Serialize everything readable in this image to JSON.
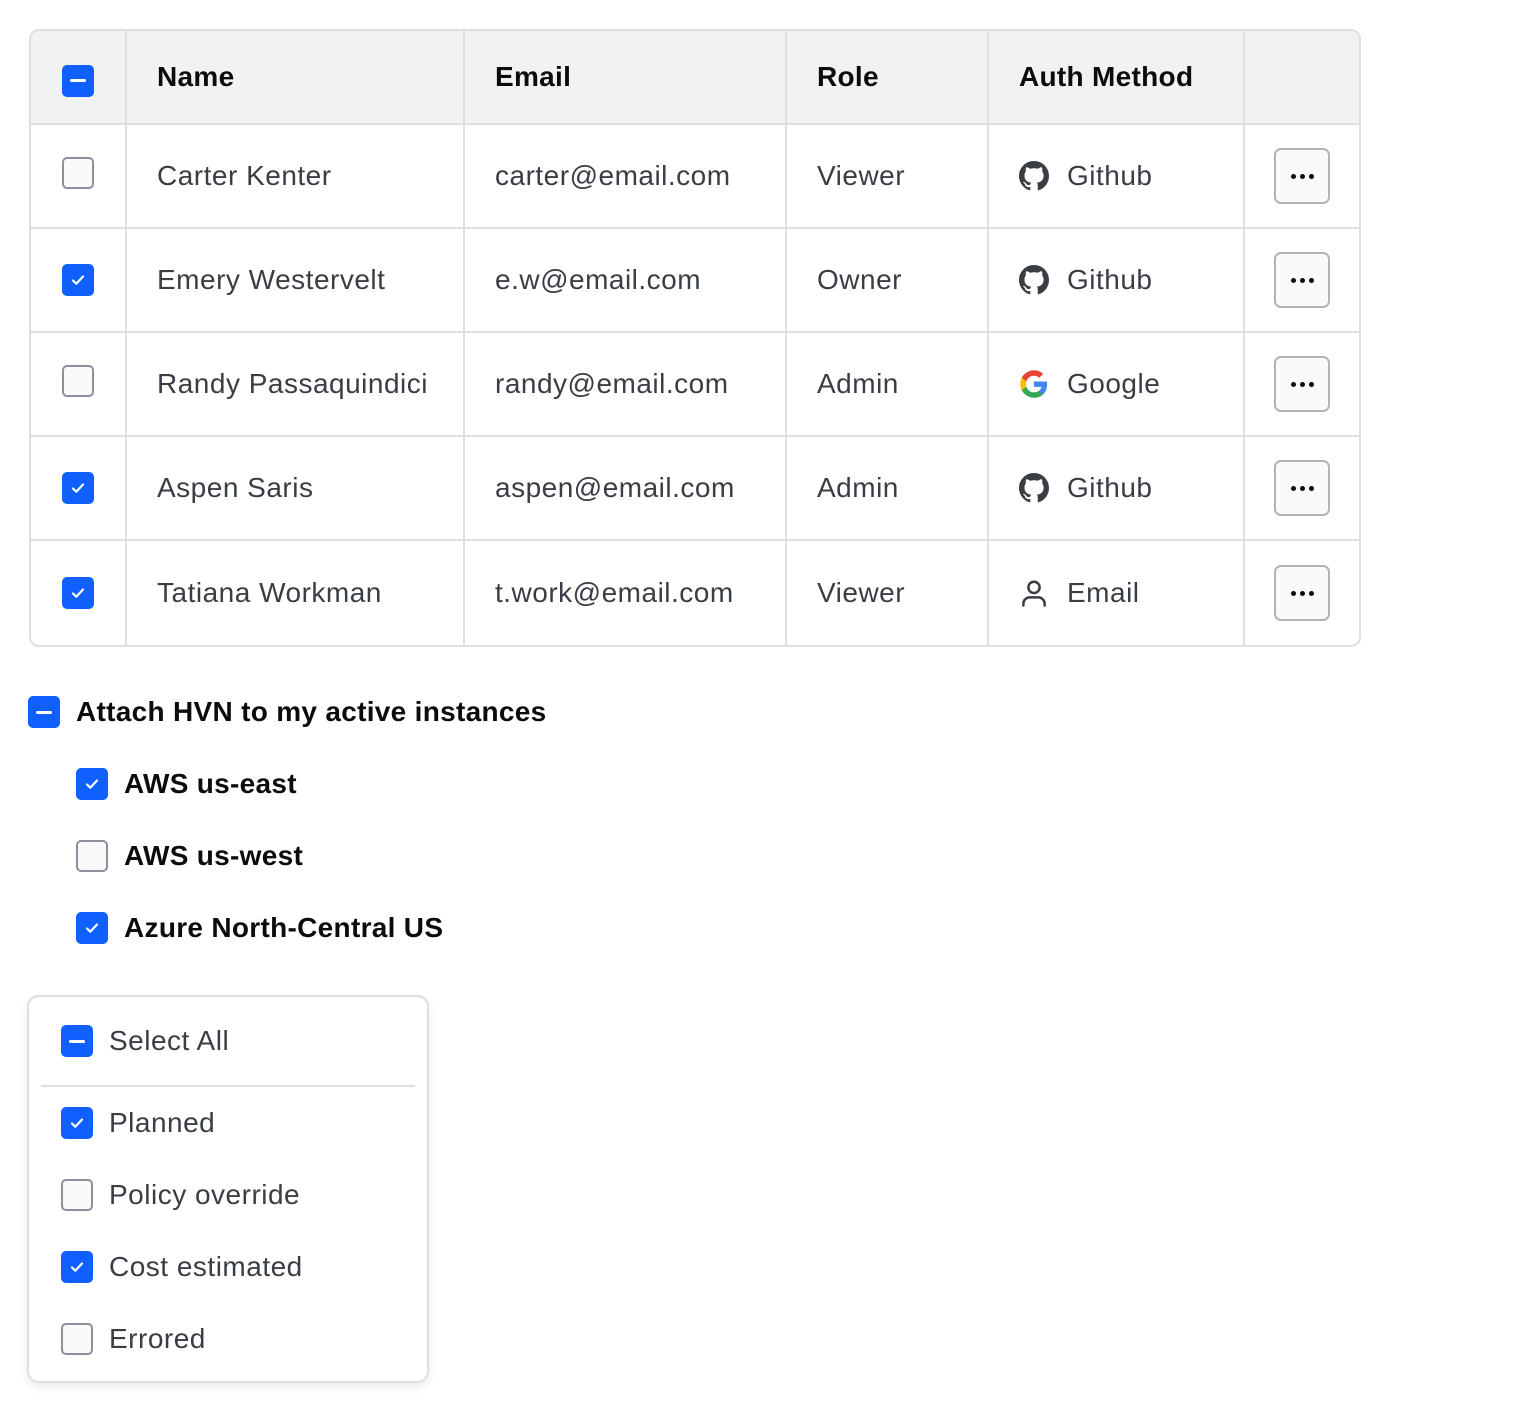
{
  "table": {
    "header_checkbox": "indeterminate",
    "columns": [
      "Name",
      "Email",
      "Role",
      "Auth Method",
      ""
    ],
    "rows": [
      {
        "checked": false,
        "name": "Carter Kenter",
        "email": "carter@email.com",
        "role": "Viewer",
        "auth": "Github",
        "auth_icon": "github-icon"
      },
      {
        "checked": true,
        "name": "Emery Westervelt",
        "email": "e.w@email.com",
        "role": "Owner",
        "auth": "Github",
        "auth_icon": "github-icon"
      },
      {
        "checked": false,
        "name": "Randy Passaquindici",
        "email": "randy@email.com",
        "role": "Admin",
        "auth": "Google",
        "auth_icon": "google-icon"
      },
      {
        "checked": true,
        "name": "Aspen Saris",
        "email": "aspen@email.com",
        "role": "Admin",
        "auth": "Github",
        "auth_icon": "github-icon"
      },
      {
        "checked": true,
        "name": "Tatiana Workman",
        "email": "t.work@email.com",
        "role": "Viewer",
        "auth": "Email",
        "auth_icon": "user-icon"
      }
    ]
  },
  "group": {
    "parent": {
      "label": "Attach HVN to my active instances",
      "state": "indeterminate"
    },
    "children": [
      {
        "label": "AWS us-east",
        "checked": true
      },
      {
        "label": "AWS us-west",
        "checked": false
      },
      {
        "label": "Azure North-Central US",
        "checked": true
      }
    ]
  },
  "dropdown": {
    "select_all": {
      "label": "Select All",
      "state": "indeterminate"
    },
    "items": [
      {
        "label": "Planned",
        "checked": true
      },
      {
        "label": "Policy override",
        "checked": false
      },
      {
        "label": "Cost estimated",
        "checked": true
      },
      {
        "label": "Errored",
        "checked": false
      }
    ]
  },
  "colors": {
    "accent": "#1060ff",
    "border": "#dedfe3",
    "header_bg": "#f1f2f3"
  }
}
